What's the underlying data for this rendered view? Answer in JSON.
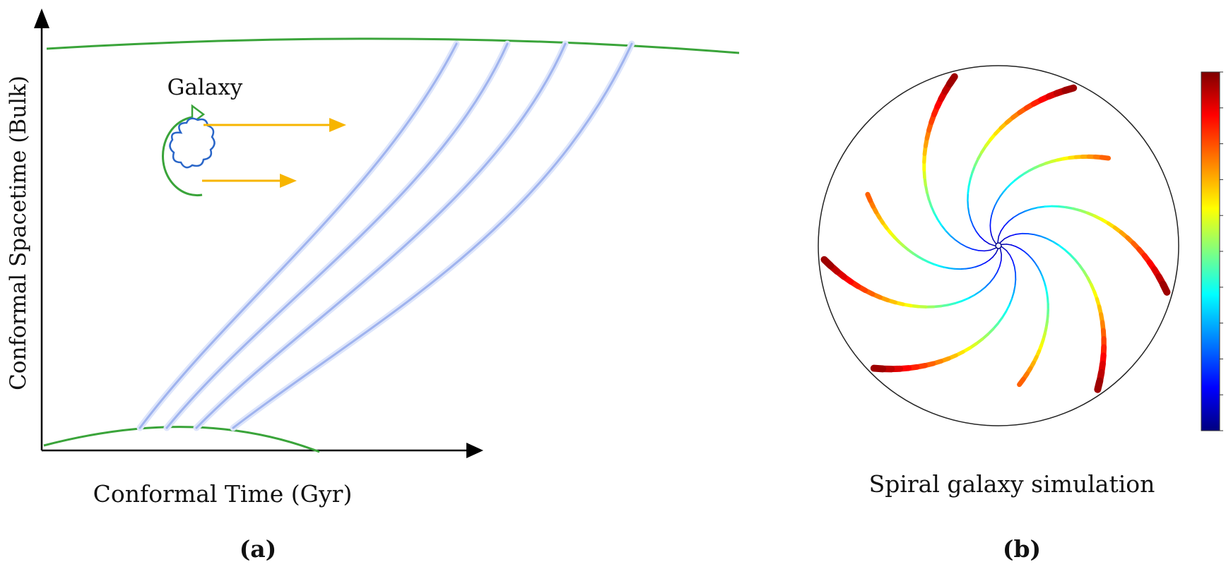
{
  "panel_a": {
    "y_axis_label": "Conformal Spacetime (Bulk)",
    "x_axis_label": "Conformal Time (Gyr)",
    "galaxy_label": "Galaxy",
    "caption": "(a)",
    "colors": {
      "boundary": "#3aa43a",
      "worldline": "#a9b9f0",
      "arrow": "#f7b500",
      "galaxy": "#2a66c8"
    }
  },
  "panel_b": {
    "title": "Spiral galaxy simulation",
    "caption": "(b)",
    "colorbar": [
      "#7f0000",
      "#ff0000",
      "#ff8000",
      "#ffff00",
      "#80ff80",
      "#00ffff",
      "#0080ff",
      "#0000ff",
      "#00007f"
    ]
  }
}
